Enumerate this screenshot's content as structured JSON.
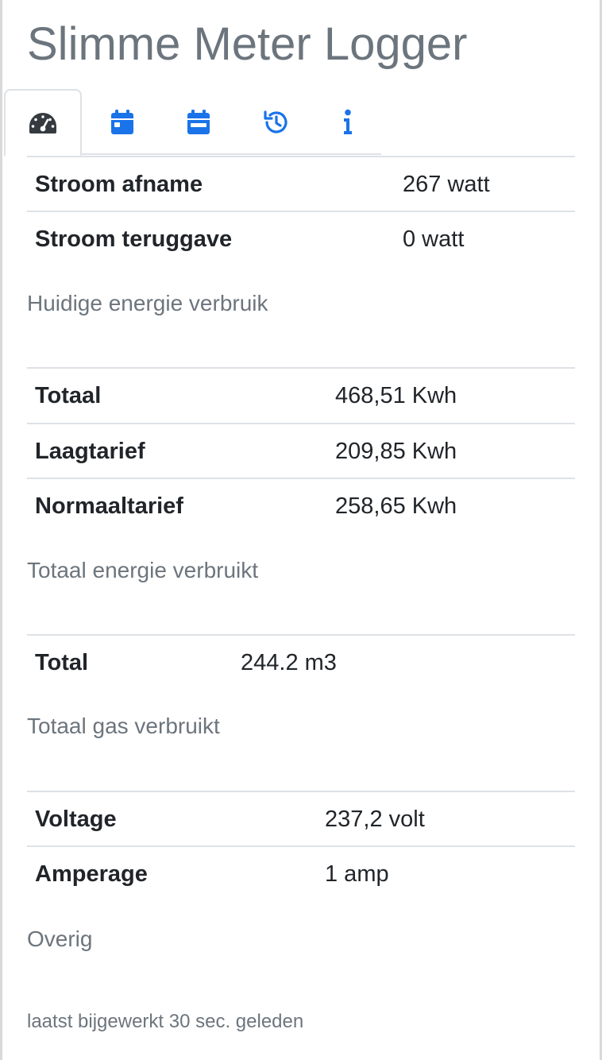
{
  "app": {
    "title": "Slimme Meter Logger"
  },
  "tabs": [
    {
      "icon": "dashboard-gauge-icon",
      "active": true
    },
    {
      "icon": "calendar-day-icon",
      "active": false
    },
    {
      "icon": "calendar-month-icon",
      "active": false
    },
    {
      "icon": "history-icon",
      "active": false
    },
    {
      "icon": "info-icon",
      "active": false
    }
  ],
  "accent_color": "#1a73e8",
  "sections": {
    "current": {
      "rows": [
        {
          "label": "Stroom afname",
          "value": "267 watt"
        },
        {
          "label": "Stroom teruggave",
          "value": "0 watt"
        }
      ],
      "caption": "Huidige energie verbruik"
    },
    "total_energy": {
      "rows": [
        {
          "label": "Totaal",
          "value": "468,51 Kwh"
        },
        {
          "label": "Laagtarief",
          "value": "209,85 Kwh"
        },
        {
          "label": "Normaaltarief",
          "value": "258,65 Kwh"
        }
      ],
      "caption": "Totaal energie verbruikt"
    },
    "gas": {
      "rows": [
        {
          "label": "Total",
          "value": "244.2 m3"
        }
      ],
      "caption": "Totaal gas verbruikt"
    },
    "other": {
      "rows": [
        {
          "label": "Voltage",
          "value": "237,2 volt"
        },
        {
          "label": "Amperage",
          "value": "1 amp"
        }
      ],
      "caption": "Overig"
    }
  },
  "footer": {
    "updated": "laatst bijgewerkt 30 sec. geleden"
  }
}
